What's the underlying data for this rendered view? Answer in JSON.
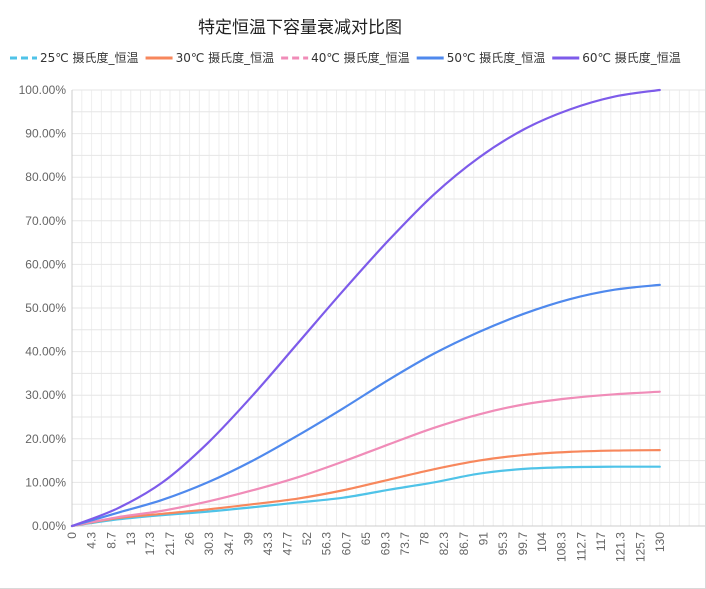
{
  "chart_data": {
    "type": "line",
    "title": "特定恒温下容量衰减对比图",
    "xlabel": "",
    "ylabel": "",
    "ylim": [
      0,
      1
    ],
    "y_tick_labels": [
      "0.00%",
      "10.00%",
      "20.00%",
      "30.00%",
      "40.00%",
      "50.00%",
      "60.00%",
      "70.00%",
      "80.00%",
      "90.00%",
      "100.00%"
    ],
    "x_tick_labels": [
      "0",
      "4.3",
      "8.7",
      "13",
      "17.3",
      "21.7",
      "26",
      "30.3",
      "34.7",
      "39",
      "43.3",
      "47.7",
      "52",
      "56.3",
      "60.7",
      "65",
      "69.3",
      "73.7",
      "78",
      "82.3",
      "86.7",
      "91",
      "95.3",
      "99.7",
      "104",
      "108.3",
      "112.7",
      "117",
      "121.3",
      "125.7",
      "130"
    ],
    "x_axis_extent": 140,
    "grid": true,
    "legend_position": "top",
    "x": [
      0,
      10,
      20,
      30,
      40,
      50,
      60,
      70,
      80,
      90,
      100,
      110,
      120,
      130
    ],
    "series": [
      {
        "name": "25℃ 摄氏度_恒温",
        "color": "#4fc3e8",
        "dash": true,
        "values": [
          0,
          0.015,
          0.025,
          0.033,
          0.043,
          0.054,
          0.065,
          0.083,
          0.1,
          0.12,
          0.131,
          0.135,
          0.136,
          0.136
        ]
      },
      {
        "name": "30℃ 摄氏度_恒温",
        "color": "#f7875c",
        "dash": false,
        "values": [
          0,
          0.018,
          0.028,
          0.038,
          0.05,
          0.063,
          0.082,
          0.106,
          0.13,
          0.15,
          0.163,
          0.17,
          0.173,
          0.174
        ]
      },
      {
        "name": "40℃ 摄氏度_恒温",
        "color": "#f08cb8",
        "dash": true,
        "values": [
          0,
          0.02,
          0.035,
          0.056,
          0.082,
          0.112,
          0.148,
          0.187,
          0.225,
          0.256,
          0.279,
          0.293,
          0.302,
          0.308
        ]
      },
      {
        "name": "50℃ 摄氏度_恒温",
        "color": "#4f89ed",
        "dash": false,
        "values": [
          0,
          0.03,
          0.06,
          0.1,
          0.15,
          0.208,
          0.27,
          0.335,
          0.395,
          0.445,
          0.487,
          0.52,
          0.542,
          0.553
        ]
      },
      {
        "name": "60℃ 摄氏度_恒温",
        "color": "#7d5bea",
        "dash": false,
        "values": [
          0,
          0.04,
          0.1,
          0.19,
          0.3,
          0.42,
          0.54,
          0.655,
          0.76,
          0.845,
          0.91,
          0.955,
          0.985,
          1.0
        ]
      }
    ]
  }
}
